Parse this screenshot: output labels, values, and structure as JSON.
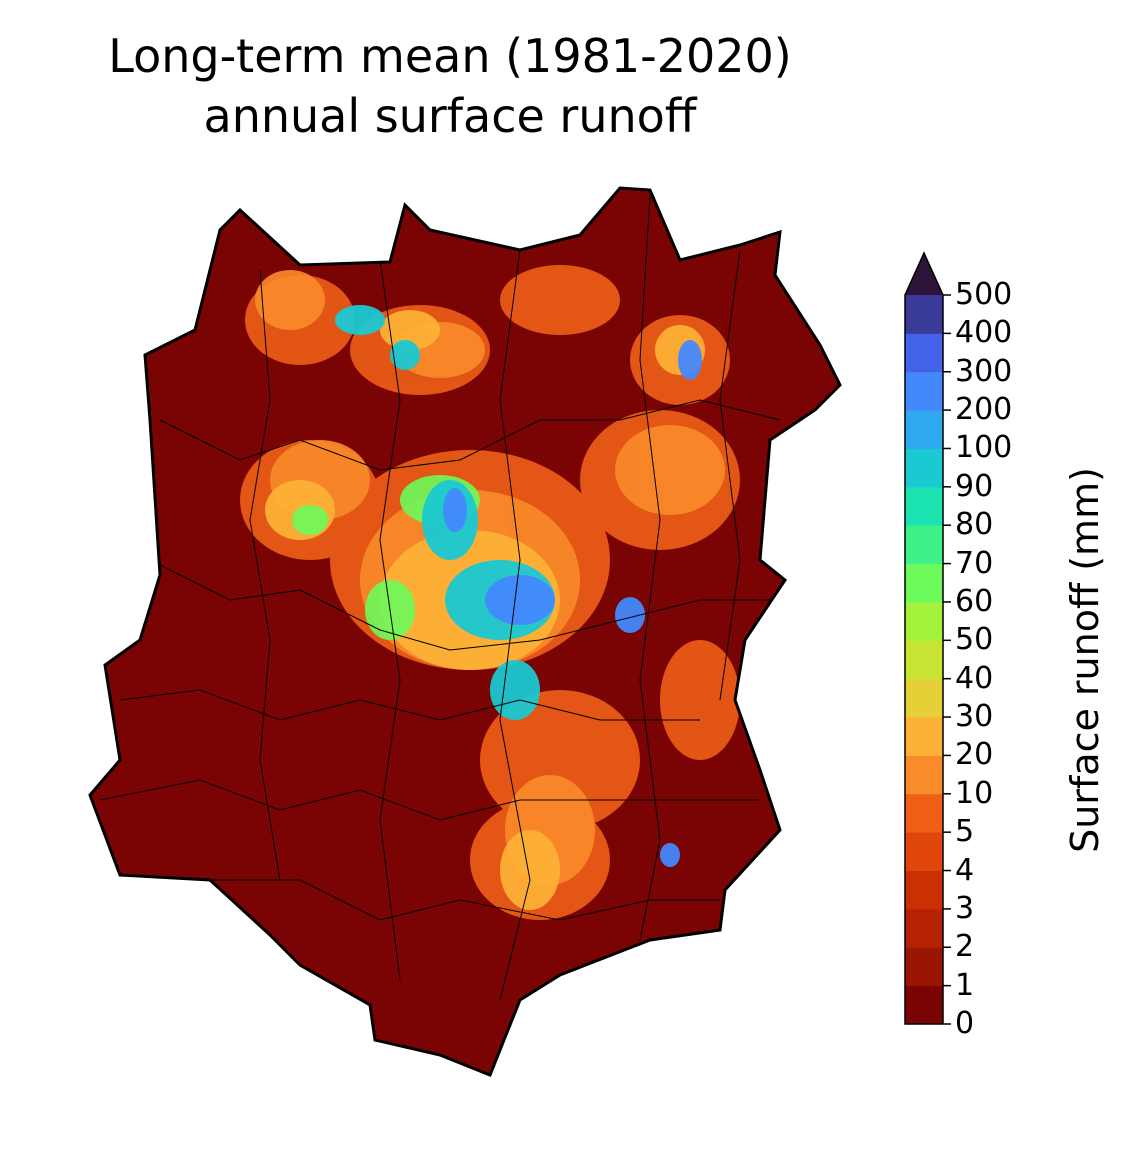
{
  "title_line1": "Long-term mean (1981-2020)",
  "title_line2": "annual surface runoff",
  "colorbar": {
    "title": "Surface runoff (mm)",
    "levels": [
      "0",
      "1",
      "2",
      "3",
      "4",
      "5",
      "10",
      "20",
      "30",
      "40",
      "50",
      "60",
      "70",
      "80",
      "90",
      "100",
      "200",
      "300",
      "400",
      "500"
    ],
    "colors": [
      "#7a0403",
      "#9a1501",
      "#b42201",
      "#cb3003",
      "#e0460a",
      "#ef5f17",
      "#f98b2a",
      "#fcb036",
      "#e6d038",
      "#c9e534",
      "#a3f33c",
      "#6cfb5a",
      "#3ef086",
      "#1be4b0",
      "#1bc9d2",
      "#2fa9f0",
      "#4488fd",
      "#4563e8",
      "#3a3b98",
      "#2e1438"
    ],
    "extend": "max"
  },
  "legend_colors": {
    "background": "#7a0403",
    "border": "#000000"
  }
}
